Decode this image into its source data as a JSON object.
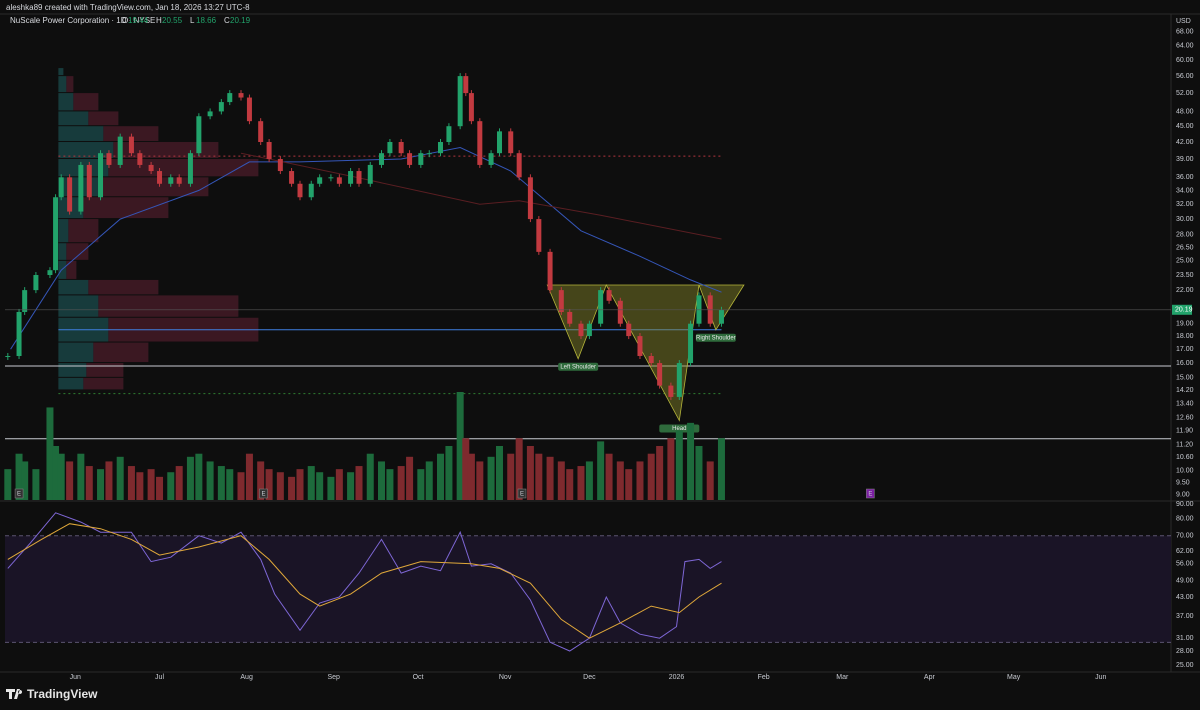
{
  "header": {
    "credit": "aleshka89 created with TradingView.com, Jan 18, 2026 13:27 UTC-8",
    "symbol": "NuScale Power Corporation · 1D · NYSE",
    "currency": "USD",
    "logo": "TradingView"
  },
  "chart_data": {
    "type": "candlestick",
    "yscale": "log",
    "ylim": [
      8.8,
      70
    ],
    "xlim": [
      -25,
      390
    ],
    "yticks": [
      {
        "value": 68,
        "label": "68.00"
      },
      {
        "value": 64,
        "label": "64.00"
      },
      {
        "value": 60,
        "label": "60.00"
      },
      {
        "value": 56,
        "label": "56.00"
      },
      {
        "value": 52,
        "label": "52.00"
      },
      {
        "value": 48,
        "label": "48.00"
      },
      {
        "value": 45,
        "label": "45.00"
      },
      {
        "value": 42,
        "label": "42.00"
      },
      {
        "value": 39,
        "label": "39.00"
      },
      {
        "value": 36,
        "label": "36.00"
      },
      {
        "value": 34,
        "label": "34.00"
      },
      {
        "value": 32,
        "label": "32.00"
      },
      {
        "value": 30,
        "label": "30.00"
      },
      {
        "value": 28,
        "label": "28.00"
      },
      {
        "value": 26.5,
        "label": "26.50"
      },
      {
        "value": 25,
        "label": "25.00"
      },
      {
        "value": 23.5,
        "label": "23.50"
      },
      {
        "value": 22,
        "label": "22.00"
      },
      {
        "value": 19,
        "label": "19.00"
      },
      {
        "value": 18,
        "label": "18.00"
      },
      {
        "value": 17,
        "label": "17.00"
      },
      {
        "value": 16,
        "label": "16.00"
      },
      {
        "value": 15,
        "label": "15.00"
      },
      {
        "value": 14.2,
        "label": "14.20"
      },
      {
        "value": 13.4,
        "label": "13.40"
      },
      {
        "value": 12.6,
        "label": "12.60"
      },
      {
        "value": 11.9,
        "label": "11.90"
      },
      {
        "value": 11.2,
        "label": "11.20"
      },
      {
        "value": 10.6,
        "label": "10.60"
      },
      {
        "value": 10,
        "label": "10.00"
      },
      {
        "value": 9.5,
        "label": "9.50"
      },
      {
        "value": 9,
        "label": "9.00"
      }
    ],
    "xticks": [
      {
        "value": 0,
        "label": "Jun"
      },
      {
        "value": 30,
        "label": "Jul"
      },
      {
        "value": 61,
        "label": "Aug"
      },
      {
        "value": 92,
        "label": "Sep"
      },
      {
        "value": 122,
        "label": "Oct"
      },
      {
        "value": 153,
        "label": "Nov"
      },
      {
        "value": 183,
        "label": "Dec"
      },
      {
        "value": 214,
        "label": "2026"
      },
      {
        "value": 245,
        "label": "Feb"
      },
      {
        "value": 273,
        "label": "Mar"
      },
      {
        "value": 304,
        "label": "Apr"
      },
      {
        "value": 334,
        "label": "May"
      },
      {
        "value": 365,
        "label": "Jun"
      }
    ],
    "ohlc": [
      {
        "label": "O",
        "value": 19.44
      },
      {
        "label": "H",
        "value": 20.55
      },
      {
        "label": "L",
        "value": 18.66
      },
      {
        "label": "C",
        "value": 20.19
      }
    ],
    "up_color": "#22a36b",
    "down_color": "#c23a40",
    "vol_up_color": "#1d6b3c",
    "vol_down_color": "#7f2a2e",
    "candles": {
      "x": [
        -24,
        -20,
        -18,
        -14,
        -9,
        -7,
        -5,
        -2,
        2,
        5,
        9,
        12,
        16,
        20,
        23,
        27,
        30,
        34,
        37,
        41,
        44,
        48,
        52,
        55,
        59,
        62,
        66,
        69,
        73,
        77,
        80,
        84,
        87,
        91,
        94,
        98,
        101,
        105,
        109,
        112,
        116,
        119,
        123,
        126,
        130,
        133,
        137,
        139,
        141,
        144,
        148,
        151,
        155,
        158,
        162,
        165,
        169,
        173,
        176,
        180,
        183,
        187,
        190,
        194,
        197,
        201,
        205,
        208,
        212,
        215,
        219,
        222,
        226,
        230
      ],
      "close": [
        16.5,
        20,
        22,
        23.5,
        24,
        33,
        36,
        31,
        38,
        33,
        40,
        38,
        43,
        40,
        38,
        37,
        35,
        36,
        35,
        40,
        47,
        48,
        50,
        52,
        51,
        46,
        42,
        39,
        37,
        35,
        33,
        35,
        36,
        36,
        35,
        37,
        35,
        38,
        40,
        42,
        40,
        38,
        40,
        40,
        42,
        45,
        56,
        52,
        46,
        38,
        40,
        44,
        40,
        36,
        30,
        26,
        22,
        20,
        19,
        18,
        19,
        22,
        21,
        19,
        18,
        16.5,
        16,
        14.5,
        13.8,
        16,
        19,
        21.5,
        19,
        20.19
      ],
      "volume": [
        20,
        30,
        25,
        20,
        60,
        35,
        30,
        25,
        30,
        22,
        20,
        25,
        28,
        22,
        18,
        20,
        15,
        18,
        22,
        28,
        30,
        25,
        22,
        20,
        18,
        30,
        25,
        20,
        18,
        15,
        20,
        22,
        18,
        15,
        20,
        18,
        22,
        30,
        25,
        20,
        22,
        28,
        20,
        25,
        30,
        35,
        70,
        40,
        30,
        25,
        28,
        35,
        30,
        40,
        35,
        30,
        28,
        25,
        20,
        22,
        25,
        38,
        30,
        25,
        20,
        25,
        30,
        35,
        40,
        45,
        50,
        35,
        25,
        40
      ]
    },
    "moving_averages": [
      {
        "color": "#3556b8",
        "x": [
          -23,
          -5,
          16,
          44,
          62,
          80,
          116,
          137,
          155,
          180,
          201,
          219,
          230
        ],
        "values": [
          17,
          24,
          30,
          34,
          38.5,
          38.5,
          39,
          41,
          37,
          28.5,
          25.5,
          23,
          21.8
        ]
      },
      {
        "color": "#5a1e22",
        "x": [
          59,
          100,
          144,
          158,
          187,
          230
        ],
        "values": [
          40,
          36,
          32,
          32.5,
          30.5,
          27.5
        ]
      }
    ],
    "levels": [
      {
        "price": 39.5,
        "from": -6,
        "to": 230,
        "color": "#b2363f",
        "dash": "2,3"
      },
      {
        "price": 18.5,
        "from": -6,
        "to": 230,
        "color": "#3f7fe0",
        "dash": "none"
      },
      {
        "price": 15.8,
        "from": -25,
        "to": 390,
        "color": "#c8cbd2",
        "dash": "none"
      },
      {
        "price": 14,
        "from": -6,
        "to": 230,
        "color": "#2e7d32",
        "dash": "2,3"
      },
      {
        "price": 11.5,
        "from": -25,
        "to": 390,
        "color": "#c8cbd2",
        "dash": "none"
      }
    ],
    "volume_profile": {
      "bins": [
        14.2,
        15,
        16,
        17.5,
        19.5,
        21.5,
        23,
        25,
        27,
        30,
        33,
        36,
        39,
        42,
        45,
        48,
        52,
        56,
        58
      ],
      "up": [
        25,
        28,
        35,
        50,
        40,
        30,
        8,
        8,
        10,
        25,
        40,
        50,
        55,
        45,
        30,
        15,
        8,
        5
      ],
      "down": [
        40,
        37,
        55,
        150,
        140,
        70,
        10,
        22,
        30,
        85,
        110,
        150,
        105,
        55,
        30,
        25,
        7,
        0
      ],
      "up_color": "#173b3c",
      "down_color": "#3b1822"
    },
    "pattern": {
      "x": [
        168,
        179,
        189,
        215,
        222,
        228,
        238
      ],
      "y": [
        22.5,
        16.3,
        22.5,
        12.45,
        22.5,
        18.5,
        22.5
      ],
      "labels": [
        "Left Shoulder",
        "Head",
        "Right Shoulder"
      ],
      "color": "#8a8a2a"
    },
    "earnings": {
      "label": "E",
      "x": [
        -20,
        67,
        159,
        283
      ]
    },
    "rsi": {
      "yscale": "log",
      "ylim": [
        23.7,
        91.5
      ],
      "yticks": [
        {
          "value": 90,
          "label": "90.00"
        },
        {
          "value": 80,
          "label": "80.00"
        },
        {
          "value": 70,
          "label": "70.00"
        },
        {
          "value": 62,
          "label": "62.00"
        },
        {
          "value": 56,
          "label": "56.00"
        },
        {
          "value": 49,
          "label": "49.00"
        },
        {
          "value": 43,
          "label": "43.00"
        },
        {
          "value": 37,
          "label": "37.00"
        },
        {
          "value": 31,
          "label": "31.00"
        },
        {
          "value": 28,
          "label": "28.00"
        },
        {
          "value": 25,
          "label": "25.00"
        }
      ],
      "bands": [
        30,
        70
      ],
      "x": [
        -24,
        -16,
        -7,
        2,
        9,
        20,
        27,
        34,
        44,
        52,
        59,
        66,
        71,
        80,
        87,
        94,
        101,
        109,
        116,
        123,
        130,
        137,
        141,
        148,
        155,
        162,
        169,
        176,
        183,
        189,
        194,
        201,
        208,
        214,
        217,
        222,
        226,
        230
      ],
      "values": [
        54,
        66,
        84,
        78,
        72,
        72,
        57,
        59,
        70,
        66,
        72,
        58,
        44,
        33,
        41,
        43,
        52,
        68,
        52,
        55,
        53,
        72,
        55,
        56,
        52,
        42,
        30,
        28,
        31,
        43,
        35,
        32,
        31,
        34,
        57,
        58,
        54,
        57
      ],
      "color": "#7e67d6",
      "ma_x": [
        -24,
        -12,
        -2,
        9,
        20,
        30,
        44,
        59,
        69,
        80,
        87,
        98,
        109,
        123,
        141,
        151,
        162,
        173,
        183,
        194,
        205,
        215,
        222,
        230
      ],
      "ma_values": [
        58,
        68,
        77,
        74,
        68,
        60,
        64,
        70,
        58,
        44,
        40,
        44,
        52,
        57,
        56,
        54,
        48,
        36,
        31,
        35,
        40,
        38,
        43,
        48
      ],
      "ma_color": "#e0a83a"
    }
  }
}
